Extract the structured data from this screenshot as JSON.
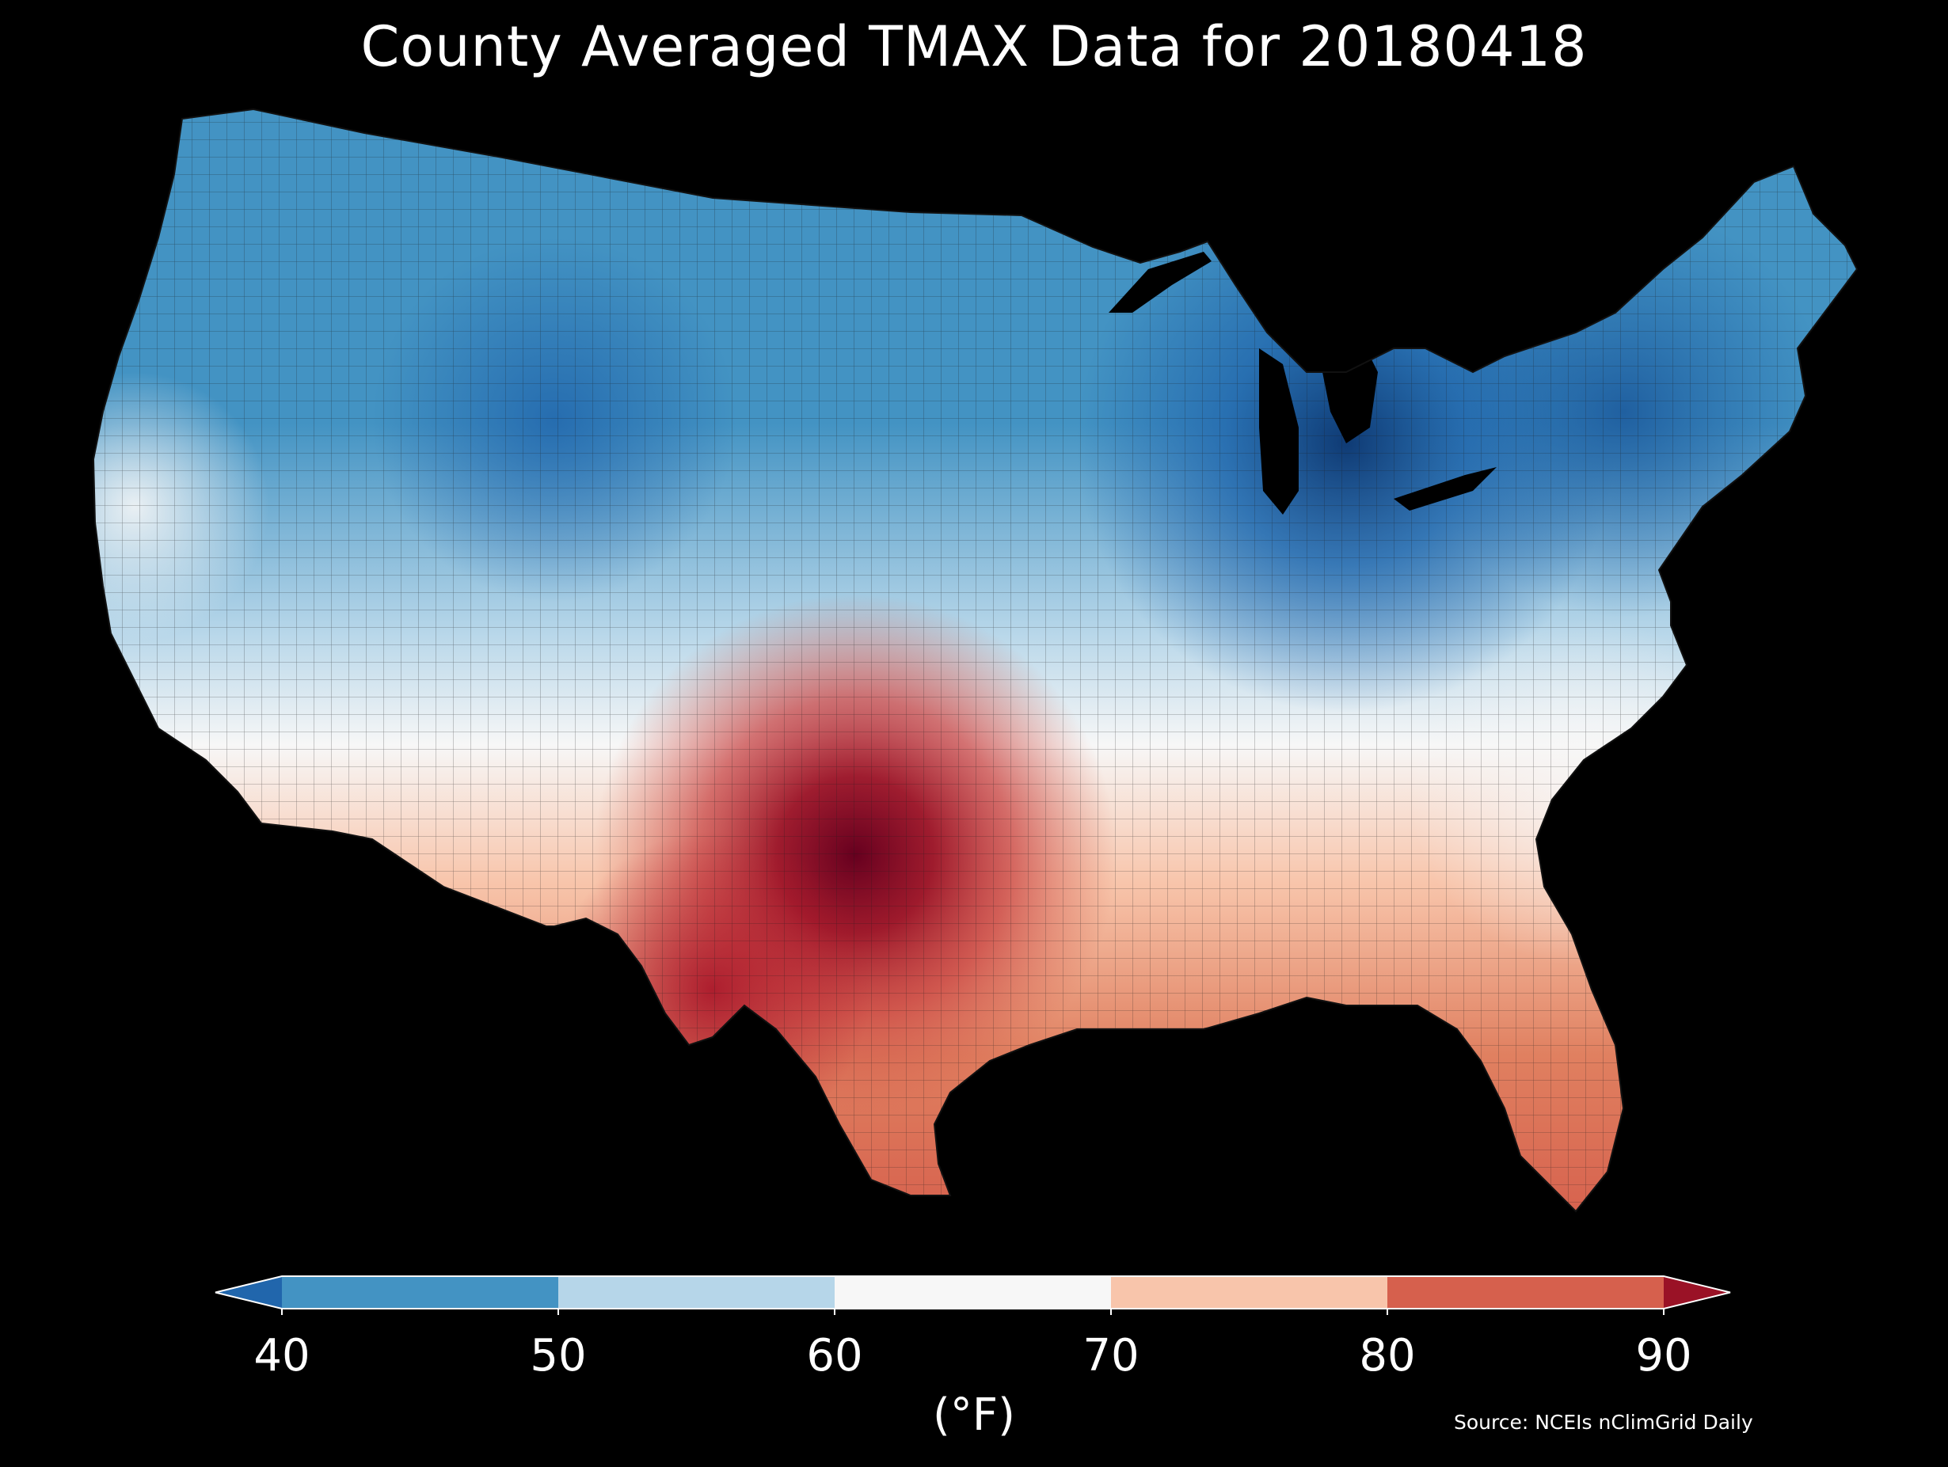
{
  "title": "County Averaged TMAX Data for 20180418",
  "colorbar": {
    "unit_label": "(°F)",
    "ticks": [
      "40",
      "50",
      "60",
      "70",
      "80",
      "90"
    ],
    "bins": [
      {
        "range": "<40",
        "color": "#2166ac"
      },
      {
        "range": "40-50",
        "color": "#4393c3"
      },
      {
        "range": "50-60",
        "color": "#b6d6e9"
      },
      {
        "range": "60-70",
        "color": "#f7f7f7"
      },
      {
        "range": "70-80",
        "color": "#f8c5ab"
      },
      {
        "range": "80-90",
        "color": "#d6604d"
      },
      {
        "range": ">90",
        "color": "#9a1226"
      }
    ]
  },
  "map": {
    "region": "contiguous United States",
    "ocean_color": "#000000",
    "border_color": "#1a1a1a"
  },
  "source": "Source: NCEIs nClimGrid Daily"
}
